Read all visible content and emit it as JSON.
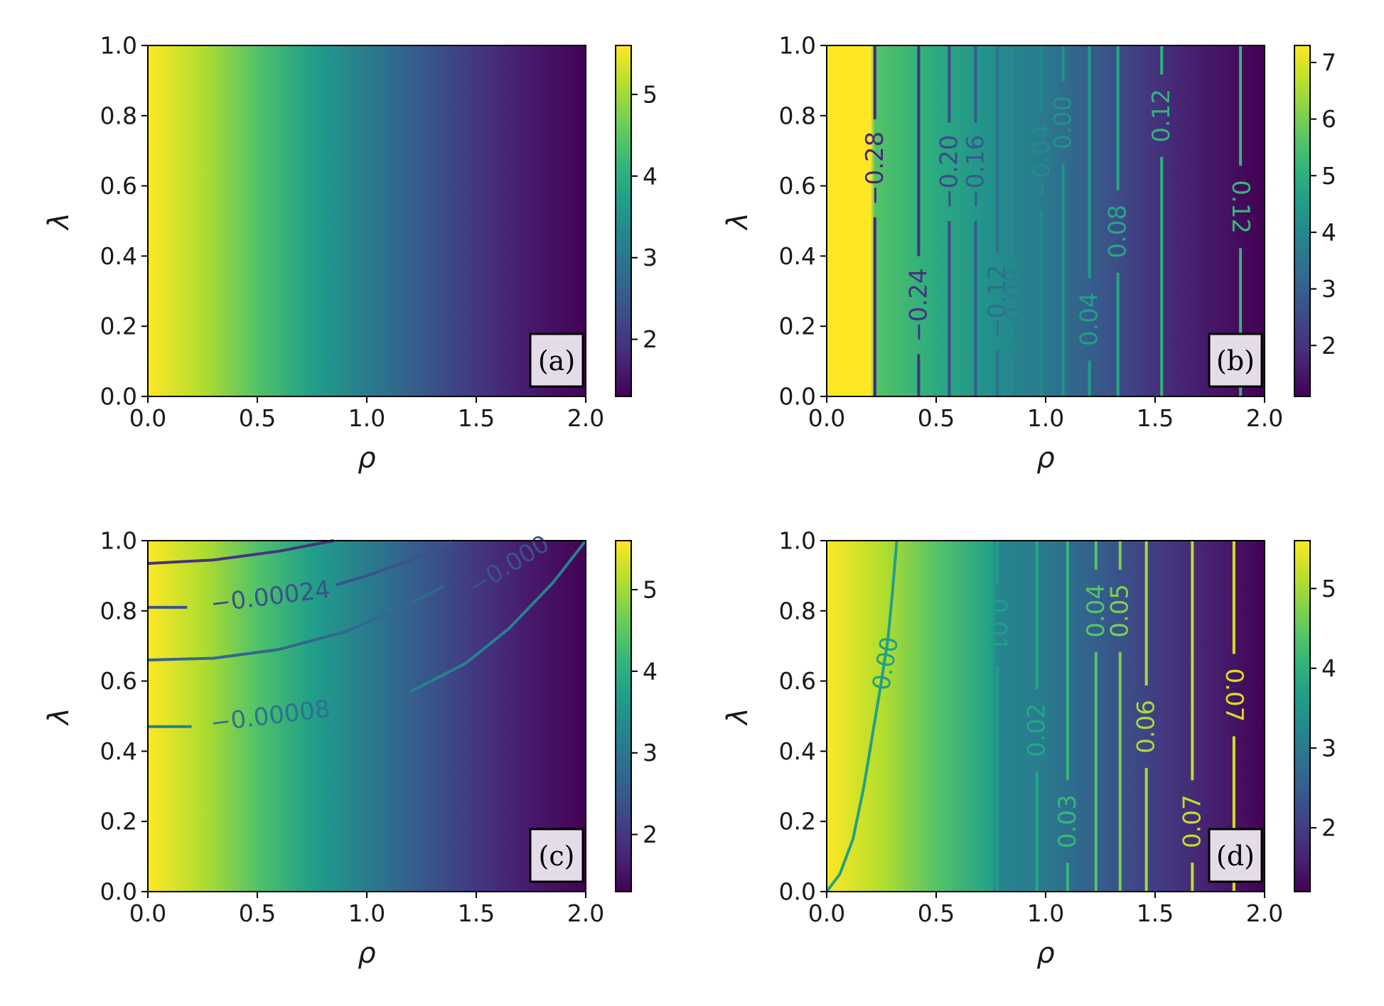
{
  "colormap": [
    "#440154",
    "#482878",
    "#3e4989",
    "#31688e",
    "#26828e",
    "#1f9e89",
    "#35b779",
    "#6ece58",
    "#b5de2b",
    "#fde725"
  ],
  "chart_data": [
    {
      "type": "heatmap",
      "panel_label": "(a)",
      "xlabel": "ρ",
      "ylabel": "λ",
      "xlim": [
        0.0,
        2.0
      ],
      "ylim": [
        0.0,
        1.0
      ],
      "x_ticks": [
        "0.0",
        "0.5",
        "1.0",
        "1.5",
        "2.0"
      ],
      "y_ticks": [
        "0.0",
        "0.2",
        "0.4",
        "0.6",
        "0.8",
        "1.0"
      ],
      "colorbar_range": [
        1.3,
        5.6
      ],
      "colorbar_ticks": [
        "2",
        "3",
        "4",
        "5"
      ],
      "colorbar_tick_values": [
        2,
        3,
        4,
        5
      ],
      "field_rho_samples": [
        0.0,
        0.25,
        0.5,
        0.75,
        1.0,
        1.25,
        1.5,
        1.75,
        2.0
      ],
      "field_values": [
        5.6,
        5.1,
        4.4,
        3.7,
        3.1,
        2.5,
        2.0,
        1.6,
        1.3
      ],
      "contours": []
    },
    {
      "type": "heatmap",
      "panel_label": "(b)",
      "xlabel": "ρ",
      "ylabel": "λ",
      "xlim": [
        0.0,
        2.0
      ],
      "ylim": [
        0.0,
        1.0
      ],
      "x_ticks": [
        "0.0",
        "0.5",
        "1.0",
        "1.5",
        "2.0"
      ],
      "y_ticks": [
        "0.0",
        "0.2",
        "0.4",
        "0.6",
        "0.8",
        "1.0"
      ],
      "colorbar_range": [
        1.1,
        7.3
      ],
      "colorbar_ticks": [
        "2",
        "3",
        "4",
        "5",
        "6",
        "7"
      ],
      "colorbar_tick_values": [
        2,
        3,
        4,
        5,
        6,
        7
      ],
      "field_rho_samples": [
        0.0,
        0.2,
        0.22,
        0.5,
        0.75,
        1.0,
        1.25,
        1.5,
        1.75,
        2.0
      ],
      "field_values": [
        7.3,
        7.3,
        5.6,
        4.9,
        4.2,
        3.6,
        2.8,
        2.0,
        1.5,
        1.1
      ],
      "contours": [
        {
          "label": "−0.28",
          "rho": 0.22,
          "label_lambda": 0.65,
          "color": "#482878"
        },
        {
          "label": "−0.24",
          "rho": 0.42,
          "label_lambda": 0.26,
          "color": "#46337e"
        },
        {
          "label": "−0.20",
          "rho": 0.56,
          "label_lambda": 0.64,
          "color": "#3e4989"
        },
        {
          "label": "−0.16",
          "rho": 0.68,
          "label_lambda": 0.64,
          "color": "#365c8d"
        },
        {
          "label": "−0.12",
          "rho": 0.78,
          "label_lambda": 0.27,
          "color": "#2e6f8e"
        },
        {
          "label": "−0.08",
          "rho": 0.86,
          "label_lambda": 0.26,
          "color": "#287d8e"
        },
        {
          "label": "−0.04",
          "rho": 0.98,
          "label_lambda": 0.67,
          "color": "#23898e"
        },
        {
          "label": "0.00",
          "rho": 1.08,
          "label_lambda": 0.78,
          "color": "#21918c"
        },
        {
          "label": "0.04",
          "rho": 1.2,
          "label_lambda": 0.22,
          "color": "#1f9e89"
        },
        {
          "label": "0.08",
          "rho": 1.33,
          "label_lambda": 0.47,
          "color": "#22a884"
        },
        {
          "label": "0.12",
          "rho": 1.53,
          "label_lambda": 0.8,
          "color": "#2fb47c"
        },
        {
          "label": "0.12",
          "rho": 1.89,
          "label_lambda": 0.54,
          "color": "#35b779",
          "flipped": true
        }
      ]
    },
    {
      "type": "heatmap",
      "panel_label": "(c)",
      "xlabel": "ρ",
      "ylabel": "λ",
      "xlim": [
        0.0,
        2.0
      ],
      "ylim": [
        0.0,
        1.0
      ],
      "x_ticks": [
        "0.0",
        "0.5",
        "1.0",
        "1.5",
        "2.0"
      ],
      "y_ticks": [
        "0.0",
        "0.2",
        "0.4",
        "0.6",
        "0.8",
        "1.0"
      ],
      "colorbar_range": [
        1.3,
        5.6
      ],
      "colorbar_ticks": [
        "2",
        "3",
        "4",
        "5"
      ],
      "colorbar_tick_values": [
        2,
        3,
        4,
        5
      ],
      "field_rho_samples": [
        0.0,
        0.25,
        0.5,
        0.75,
        1.0,
        1.25,
        1.5,
        1.75,
        2.0
      ],
      "field_values": [
        5.6,
        5.1,
        4.4,
        3.7,
        3.1,
        2.5,
        2.0,
        1.6,
        1.3
      ],
      "contour_curves": [
        {
          "color": "#46337e",
          "points": [
            [
              0.0,
              0.935
            ],
            [
              0.3,
              0.945
            ],
            [
              0.6,
              0.97
            ],
            [
              0.85,
              1.0
            ]
          ]
        },
        {
          "color": "#3b528b",
          "points": [
            [
              0.0,
              0.81
            ],
            [
              0.18,
              0.81
            ]
          ]
        },
        {
          "color": "#3b528b",
          "points": [
            [
              0.86,
              0.874
            ],
            [
              1.0,
              0.9
            ],
            [
              1.2,
              0.945
            ],
            [
              1.4,
              1.0
            ]
          ]
        },
        {
          "color": "#31688e",
          "points": [
            [
              0.0,
              0.66
            ],
            [
              0.3,
              0.665
            ],
            [
              0.6,
              0.69
            ],
            [
              0.9,
              0.74
            ],
            [
              1.2,
              0.82
            ],
            [
              1.35,
              0.87
            ]
          ]
        },
        {
          "color": "#26828e",
          "points": [
            [
              0.0,
              0.47
            ],
            [
              0.2,
              0.47
            ]
          ]
        },
        {
          "color": "#26828e",
          "points": [
            [
              1.2,
              0.57
            ],
            [
              1.45,
              0.65
            ],
            [
              1.65,
              0.75
            ],
            [
              1.85,
              0.88
            ],
            [
              2.0,
              1.0
            ]
          ]
        }
      ],
      "contour_labels": [
        {
          "label": "−0.00024",
          "rho": 0.56,
          "lambda": 0.84,
          "angle": -7,
          "color": "#3b528b"
        },
        {
          "label": "−0.00008",
          "rho": 0.56,
          "lambda": 0.5,
          "angle": -7,
          "color": "#2c728e"
        },
        {
          "label": "−0.000",
          "rho": 1.65,
          "lambda": 0.93,
          "angle": -32,
          "color": "#3b528b"
        }
      ]
    },
    {
      "type": "heatmap",
      "panel_label": "(d)",
      "xlabel": "ρ",
      "ylabel": "λ",
      "xlim": [
        0.0,
        2.0
      ],
      "ylim": [
        0.0,
        1.0
      ],
      "x_ticks": [
        "0.0",
        "0.5",
        "1.0",
        "1.5",
        "2.0"
      ],
      "y_ticks": [
        "0.0",
        "0.2",
        "0.4",
        "0.6",
        "0.8",
        "1.0"
      ],
      "colorbar_range": [
        1.2,
        5.6
      ],
      "colorbar_ticks": [
        "2",
        "3",
        "4",
        "5"
      ],
      "colorbar_tick_values": [
        2,
        3,
        4,
        5
      ],
      "field_rho_samples": [
        0.0,
        0.25,
        0.5,
        0.75,
        0.78,
        1.0,
        1.25,
        1.5,
        1.75,
        2.0
      ],
      "field_values": [
        5.6,
        5.1,
        4.4,
        3.7,
        3.2,
        3.0,
        2.5,
        2.0,
        1.6,
        1.2
      ],
      "contour_curves": [
        {
          "color": "#23a083",
          "points": [
            [
              0.0,
              0.0
            ],
            [
              0.06,
              0.05
            ],
            [
              0.12,
              0.15
            ],
            [
              0.17,
              0.3
            ],
            [
              0.21,
              0.45
            ],
            [
              0.25,
              0.6
            ],
            [
              0.28,
              0.72
            ],
            [
              0.3,
              0.85
            ],
            [
              0.32,
              1.0
            ]
          ]
        }
      ],
      "contours": [
        {
          "label": "0.01",
          "rho": 0.78,
          "label_lambda": 0.76,
          "color": "#1f9e89",
          "flipped": true
        },
        {
          "label": "0.02",
          "rho": 0.96,
          "label_lambda": 0.46,
          "color": "#22a884"
        },
        {
          "label": "0.03",
          "rho": 1.1,
          "label_lambda": 0.2,
          "color": "#35b779"
        },
        {
          "label": "0.04",
          "rho": 1.23,
          "label_lambda": 0.8,
          "color": "#54c568"
        },
        {
          "label": "0.05",
          "rho": 1.34,
          "label_lambda": 0.8,
          "color": "#7ad151"
        },
        {
          "label": "0.06",
          "rho": 1.46,
          "label_lambda": 0.47,
          "color": "#a5db36"
        },
        {
          "label": "0.07",
          "rho": 1.67,
          "label_lambda": 0.2,
          "color": "#bddf26"
        },
        {
          "label": "0.07",
          "rho": 1.86,
          "label_lambda": 0.56,
          "color": "#d2e21b",
          "flipped": true
        }
      ],
      "curve_labels": [
        {
          "label": "0.00",
          "rho": 0.27,
          "lambda": 0.65,
          "angle": -80,
          "color": "#23a083"
        }
      ]
    }
  ]
}
